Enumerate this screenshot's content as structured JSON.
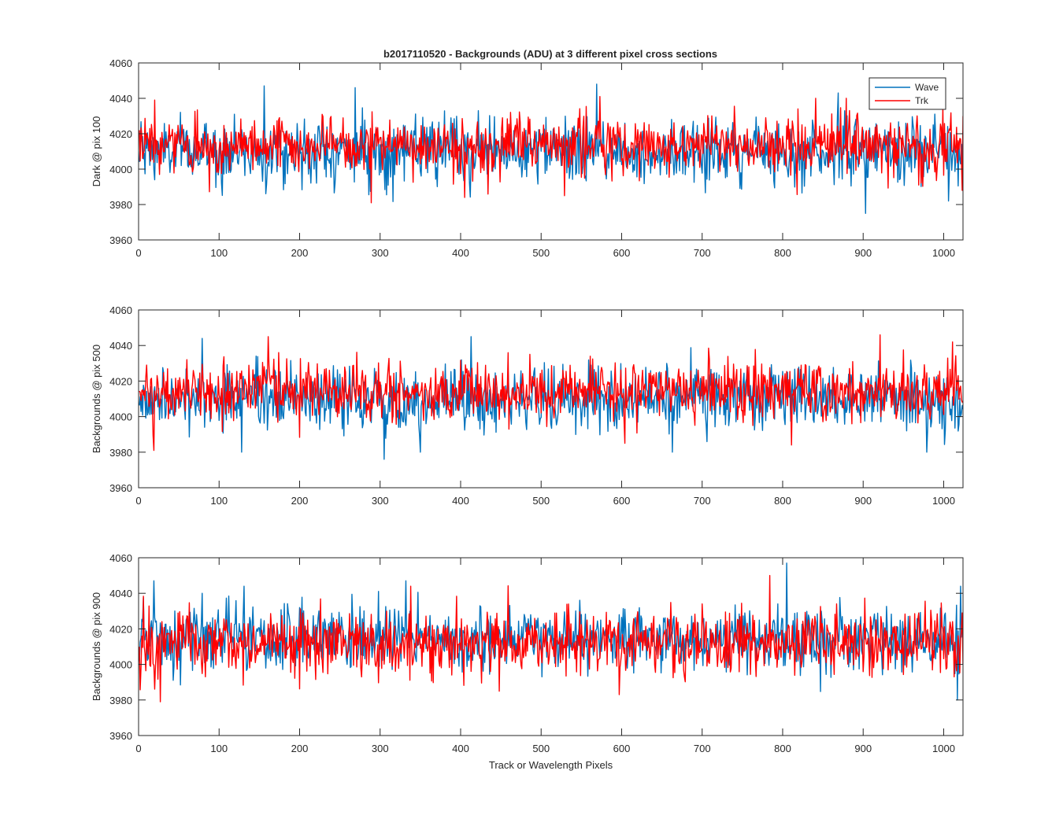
{
  "figure": {
    "title": "b2017110520 - Backgrounds (ADU) at 3 different pixel cross sections"
  },
  "colors": {
    "wave": "#0072BD",
    "trk": "#FF0000",
    "axes": "#262626",
    "background": "#FFFFFF"
  },
  "chart_data": [
    {
      "type": "line",
      "title": "b2017110520 - Backgrounds (ADU) at 3 different pixel cross sections",
      "xlabel": "",
      "ylabel": "Dark @ pix 100",
      "xlim": [
        0,
        1024
      ],
      "ylim": [
        3960,
        4060
      ],
      "xticks": [
        0,
        100,
        200,
        300,
        400,
        500,
        600,
        700,
        800,
        900,
        1000
      ],
      "yticks": [
        3960,
        3980,
        4000,
        4020,
        4040,
        4060
      ],
      "legend": {
        "entries": [
          "Wave",
          "Trk"
        ],
        "placement": "top-right"
      },
      "series": [
        {
          "name": "Wave",
          "n_points": 1024,
          "mean": 4010,
          "std": 9,
          "min": 3975,
          "max": 4048,
          "spikes": [
            [
              155,
              4047
            ],
            [
              268,
              4046
            ],
            [
              568,
              4048
            ],
            [
              868,
              4043
            ],
            [
              902,
              3975
            ],
            [
              1005,
              3982
            ]
          ]
        },
        {
          "name": "Trk",
          "n_points": 1024,
          "mean": 4013,
          "std": 8,
          "min": 3981,
          "max": 4042,
          "spikes": [
            [
              19,
              4039
            ],
            [
              288,
              3981
            ],
            [
              572,
              4041
            ],
            [
              840,
              4040
            ],
            [
              878,
              4040
            ],
            [
              1022,
              3988
            ]
          ]
        }
      ]
    },
    {
      "type": "line",
      "title": "",
      "xlabel": "",
      "ylabel": "Backgrounds @ pix 500",
      "xlim": [
        0,
        1024
      ],
      "ylim": [
        3960,
        4060
      ],
      "xticks": [
        0,
        100,
        200,
        300,
        400,
        500,
        600,
        700,
        800,
        900,
        1000
      ],
      "yticks": [
        3960,
        3980,
        4000,
        4020,
        4040,
        4060
      ],
      "series": [
        {
          "name": "Wave",
          "n_points": 1024,
          "mean": 4010,
          "std": 9,
          "min": 3976,
          "max": 4045,
          "spikes": [
            [
              78,
              4044
            ],
            [
              127,
              3980
            ],
            [
              304,
              3976
            ],
            [
              349,
              3980
            ],
            [
              412,
              4045
            ],
            [
              662,
              3980
            ],
            [
              978,
              3980
            ]
          ]
        },
        {
          "name": "Trk",
          "n_points": 1024,
          "mean": 4014,
          "std": 8,
          "min": 3981,
          "max": 4046,
          "spikes": [
            [
              18,
              3981
            ],
            [
              160,
              4045
            ],
            [
              920,
              4046
            ],
            [
              1010,
              4042
            ],
            [
              603,
              3985
            ]
          ]
        }
      ]
    },
    {
      "type": "line",
      "title": "",
      "xlabel": "Track or Wavelength Pixels",
      "ylabel": "Backgrounds @ pix 900",
      "xlim": [
        0,
        1024
      ],
      "ylim": [
        3960,
        4060
      ],
      "xticks": [
        0,
        100,
        200,
        300,
        400,
        500,
        600,
        700,
        800,
        900,
        1000
      ],
      "yticks": [
        3960,
        3980,
        4000,
        4020,
        4040,
        4060
      ],
      "series": [
        {
          "name": "Wave",
          "n_points": 1024,
          "mean": 4014,
          "std": 9,
          "min": 3980,
          "max": 4057,
          "spikes": [
            [
              18,
              4047
            ],
            [
              130,
              4044
            ],
            [
              331,
              4047
            ],
            [
              804,
              4057
            ],
            [
              1016,
              3980
            ],
            [
              1020,
              4044
            ]
          ]
        },
        {
          "name": "Trk",
          "n_points": 1024,
          "mean": 4012,
          "std": 9,
          "min": 3979,
          "max": 4050,
          "spikes": [
            [
              26,
              3979
            ],
            [
              337,
              4044
            ],
            [
              596,
              3983
            ],
            [
              783,
              4050
            ],
            [
              1012,
              3993
            ]
          ]
        }
      ]
    }
  ]
}
